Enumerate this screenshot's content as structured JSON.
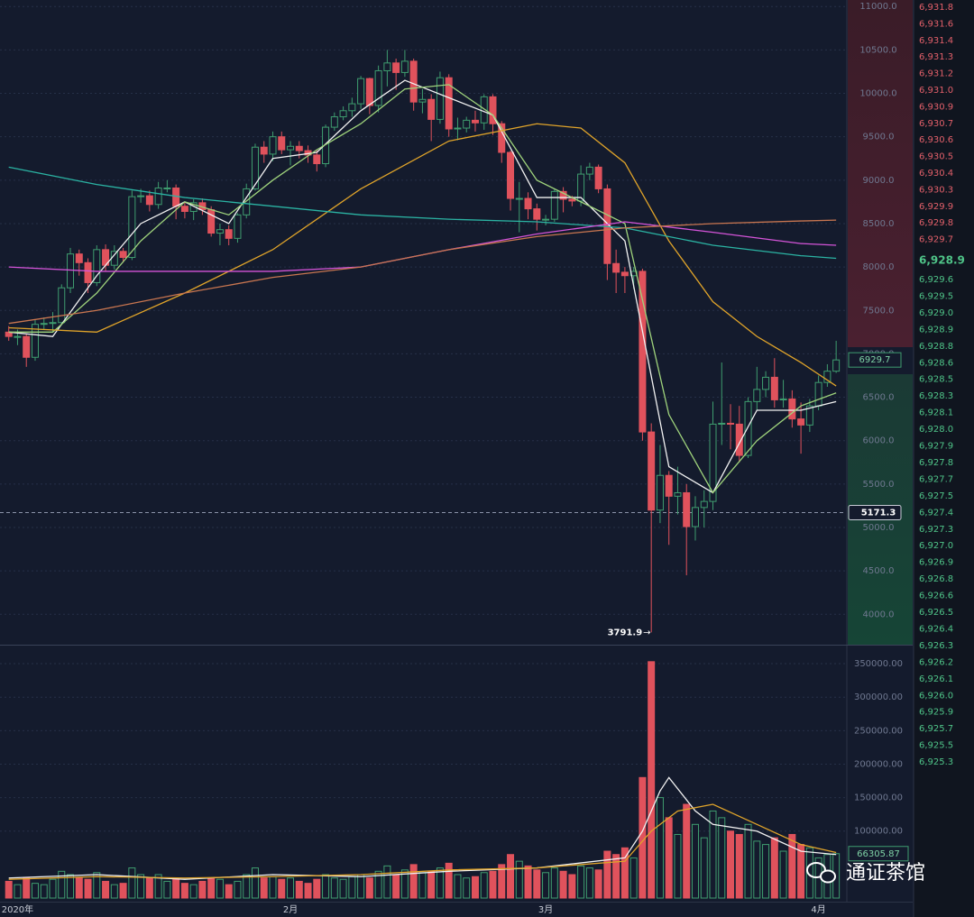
{
  "chart_data": {
    "type": "candlestick",
    "categories": [
      null,
      "2020年",
      null,
      null,
      null,
      null,
      null,
      null,
      null,
      null,
      null,
      null,
      null,
      null,
      null,
      null,
      null,
      null,
      null,
      null,
      null,
      null,
      null,
      null,
      null,
      null,
      null,
      null,
      null,
      null,
      null,
      null,
      "2月",
      null,
      null,
      null,
      null,
      null,
      null,
      null,
      null,
      null,
      null,
      null,
      null,
      null,
      null,
      null,
      null,
      null,
      null,
      null,
      null,
      null,
      null,
      null,
      null,
      null,
      null,
      null,
      null,
      "3月",
      null,
      null,
      null,
      null,
      null,
      null,
      null,
      null,
      null,
      null,
      null,
      null,
      null,
      null,
      null,
      null,
      null,
      null,
      null,
      null,
      null,
      null,
      null,
      null,
      null,
      null,
      null,
      null,
      null,
      null,
      "4月",
      null,
      null
    ],
    "candles": {
      "open": [
        7250,
        7200,
        7200,
        6960,
        7340,
        7350,
        7360,
        7760,
        8150,
        8050,
        7820,
        8200,
        8020,
        8180,
        8110,
        8810,
        8820,
        8720,
        8910,
        8910,
        8700,
        8640,
        8740,
        8660,
        8390,
        8430,
        8330,
        8600,
        8900,
        9380,
        9300,
        9500,
        9350,
        9390,
        9340,
        9290,
        9190,
        9610,
        9730,
        9800,
        9880,
        10170,
        9860,
        10260,
        10350,
        10240,
        10370,
        9900,
        9930,
        9700,
        10180,
        9590,
        9600,
        9690,
        9660,
        9960,
        9650,
        9320,
        8790,
        8790,
        8670,
        8550,
        8550,
        8870,
        8780,
        8760,
        9070,
        9150,
        8900,
        8040,
        7940,
        7900,
        7950,
        6100,
        5200,
        5600,
        5360,
        5400,
        5010,
        5230,
        5300,
        6190,
        6200,
        6190,
        5830,
        6450,
        6590,
        6730,
        6470,
        6480,
        6250,
        6180,
        6400,
        6670,
        6800
      ],
      "high": [
        7320,
        7280,
        7230,
        7400,
        7420,
        7480,
        7800,
        8220,
        8200,
        8100,
        8250,
        8260,
        8250,
        8220,
        8880,
        8900,
        8880,
        8980,
        9000,
        8950,
        8750,
        8780,
        8790,
        8700,
        8500,
        8480,
        8620,
        8960,
        9420,
        9450,
        9560,
        9560,
        9450,
        9450,
        9400,
        9350,
        9640,
        9780,
        9850,
        9950,
        10200,
        10180,
        10320,
        10500,
        10400,
        10500,
        10400,
        10050,
        9990,
        10250,
        10220,
        9720,
        9730,
        9800,
        9990,
        9990,
        9680,
        9340,
        8980,
        8860,
        8730,
        8600,
        8900,
        8920,
        8820,
        9170,
        9200,
        9180,
        8950,
        8200,
        8000,
        8000,
        7980,
        6200,
        5950,
        5650,
        5700,
        5500,
        5360,
        5430,
        6450,
        6900,
        6420,
        6400,
        6500,
        6850,
        6800,
        6950,
        6700,
        6580,
        6440,
        6480,
        6750,
        6880,
        7150
      ],
      "low": [
        7150,
        7100,
        6850,
        6920,
        7280,
        7250,
        7330,
        7700,
        7900,
        7700,
        7780,
        7950,
        7970,
        8050,
        8080,
        8740,
        8640,
        8670,
        8860,
        8550,
        8560,
        8540,
        8600,
        8350,
        8250,
        8250,
        8280,
        8560,
        8880,
        9200,
        9220,
        9300,
        9170,
        9250,
        9200,
        9100,
        9150,
        9570,
        9690,
        9730,
        9820,
        9760,
        9780,
        10080,
        10040,
        10190,
        9800,
        9770,
        9450,
        9650,
        9500,
        9460,
        9550,
        9560,
        9580,
        9520,
        9200,
        8650,
        8400,
        8550,
        8420,
        8480,
        8520,
        8630,
        8700,
        8700,
        9000,
        8850,
        7850,
        7700,
        7700,
        7750,
        6000,
        3791.9,
        5050,
        4800,
        5150,
        4450,
        4850,
        5000,
        5200,
        5950,
        5900,
        5750,
        5800,
        6350,
        6500,
        6380,
        6380,
        6150,
        5850,
        6100,
        6350,
        6620,
        6780
      ],
      "close": [
        7200,
        7200,
        6960,
        7340,
        7350,
        7360,
        7760,
        8150,
        8050,
        7820,
        8200,
        8020,
        8180,
        8110,
        8810,
        8820,
        8720,
        8910,
        8910,
        8700,
        8640,
        8740,
        8660,
        8390,
        8430,
        8330,
        8600,
        8900,
        9380,
        9300,
        9500,
        9350,
        9390,
        9340,
        9290,
        9190,
        9610,
        9730,
        9800,
        9880,
        10170,
        9860,
        10260,
        10350,
        10240,
        10370,
        9900,
        9930,
        9700,
        10180,
        9590,
        9600,
        9690,
        9660,
        9960,
        9650,
        9320,
        8790,
        8790,
        8670,
        8550,
        8550,
        8870,
        8780,
        8760,
        9070,
        9150,
        8900,
        8040,
        7940,
        7900,
        7950,
        6100,
        5200,
        5600,
        5360,
        5400,
        5010,
        5230,
        5300,
        6190,
        6200,
        6190,
        5830,
        6450,
        6590,
        6730,
        6470,
        6480,
        6250,
        6180,
        6400,
        6670,
        6800,
        6929.7
      ],
      "volume": [
        25000,
        20000,
        30000,
        22000,
        20000,
        28000,
        40000,
        35000,
        30000,
        28000,
        38000,
        25000,
        20000,
        22000,
        45000,
        35000,
        30000,
        35000,
        25000,
        30000,
        22000,
        20000,
        25000,
        30000,
        28000,
        20000,
        25000,
        35000,
        45000,
        30000,
        32000,
        28000,
        30000,
        25000,
        22000,
        28000,
        35000,
        30000,
        28000,
        32000,
        35000,
        30000,
        40000,
        48000,
        35000,
        42000,
        50000,
        38000,
        40000,
        45000,
        52000,
        35000,
        30000,
        32000,
        38000,
        40000,
        50000,
        65000,
        55000,
        48000,
        42000,
        38000,
        45000,
        40000,
        35000,
        48000,
        45000,
        42000,
        70000,
        65000,
        75000,
        60000,
        180000,
        353000,
        150000,
        120000,
        95000,
        140000,
        110000,
        90000,
        130000,
        120000,
        100000,
        95000,
        110000,
        85000,
        80000,
        90000,
        70000,
        95000,
        80000,
        75000,
        60000,
        65000,
        66305.87
      ]
    },
    "up_color": "#3f9d6f",
    "down_color": "#e0525c",
    "ma_lines": [
      {
        "color": "#f2f2f2",
        "x": [
          0,
          5,
          10,
          15,
          20,
          25,
          30,
          35,
          40,
          45,
          50,
          55,
          60,
          65,
          70,
          75,
          80,
          85,
          90,
          94
        ],
        "values": [
          7250,
          7200,
          7900,
          8500,
          8750,
          8500,
          9250,
          9320,
          9800,
          10150,
          9950,
          9750,
          8800,
          8800,
          8300,
          5700,
          5400,
          6350,
          6350,
          6450
        ]
      },
      {
        "color": "#9fd37c",
        "x": [
          0,
          5,
          10,
          15,
          20,
          25,
          30,
          35,
          40,
          45,
          50,
          55,
          60,
          65,
          70,
          75,
          80,
          85,
          90,
          94
        ],
        "values": [
          7250,
          7250,
          7700,
          8300,
          8750,
          8600,
          9000,
          9350,
          9650,
          10050,
          10100,
          9750,
          9000,
          8750,
          8500,
          6300,
          5400,
          6000,
          6400,
          6550
        ]
      },
      {
        "color": "#e0a42a",
        "x": [
          0,
          10,
          20,
          30,
          40,
          50,
          60,
          65,
          70,
          75,
          80,
          85,
          90,
          94
        ],
        "values": [
          7300,
          7250,
          7700,
          8200,
          8900,
          9450,
          9650,
          9600,
          9200,
          8300,
          7600,
          7200,
          6900,
          6630
        ]
      },
      {
        "color": "#2bb3a3",
        "x": [
          0,
          10,
          20,
          30,
          40,
          50,
          60,
          70,
          80,
          90,
          94
        ],
        "values": [
          9150,
          8950,
          8800,
          8700,
          8600,
          8550,
          8520,
          8450,
          8250,
          8130,
          8100
        ]
      },
      {
        "color": "#d454d8",
        "x": [
          0,
          10,
          20,
          30,
          40,
          50,
          60,
          70,
          80,
          90,
          94
        ],
        "values": [
          8000,
          7950,
          7950,
          7950,
          8000,
          8200,
          8380,
          8520,
          8400,
          8270,
          8250
        ]
      },
      {
        "color": "#c97650",
        "x": [
          0,
          10,
          20,
          30,
          40,
          50,
          60,
          70,
          80,
          90,
          94
        ],
        "values": [
          7350,
          7500,
          7700,
          7880,
          8000,
          8200,
          8350,
          8450,
          8500,
          8530,
          8540
        ]
      }
    ],
    "volume_ma_lines": [
      {
        "color": "#f2f2f2",
        "x": [
          0,
          10,
          20,
          30,
          40,
          50,
          60,
          70,
          72,
          74,
          75,
          78,
          80,
          85,
          90,
          94
        ],
        "values": [
          30000,
          35000,
          28000,
          35000,
          32000,
          40000,
          45000,
          60000,
          100000,
          160000,
          180000,
          130000,
          110000,
          100000,
          70000,
          65000
        ]
      },
      {
        "color": "#e0a42a",
        "x": [
          0,
          10,
          20,
          30,
          40,
          50,
          60,
          70,
          73,
          76,
          80,
          85,
          90,
          94
        ],
        "values": [
          28000,
          32000,
          30000,
          32000,
          35000,
          42000,
          45000,
          55000,
          100000,
          130000,
          140000,
          110000,
          80000,
          68000
        ]
      }
    ],
    "ylim": [
      3650,
      11075
    ],
    "yticks": [
      {
        "value": 4000,
        "label": "4000.0"
      },
      {
        "value": 4500,
        "label": "4500.0"
      },
      {
        "value": 5000,
        "label": "5000.0"
      },
      {
        "value": 5500,
        "label": "5500.0"
      },
      {
        "value": 6000,
        "label": "6000.0"
      },
      {
        "value": 6500,
        "label": "6500.0"
      },
      {
        "value": 7000,
        "label": "7000.0"
      },
      {
        "value": 7500,
        "label": "7500.0"
      },
      {
        "value": 8000,
        "label": "8000.0"
      },
      {
        "value": 8500,
        "label": "8500.0"
      },
      {
        "value": 9000,
        "label": "9000.0"
      },
      {
        "value": 9500,
        "label": "9500.0"
      },
      {
        "value": 10000,
        "label": "10000.0"
      },
      {
        "value": 10500,
        "label": "10500.0"
      },
      {
        "value": 11000,
        "label": "11000.0"
      }
    ],
    "y2lim": [
      0,
      377000
    ],
    "y2ticks": [
      {
        "value": 100000,
        "label": "100000.00"
      },
      {
        "value": 150000,
        "label": "150000.00"
      },
      {
        "value": 200000,
        "label": "200000.00"
      },
      {
        "value": 250000,
        "label": "250000.00"
      },
      {
        "value": 300000,
        "label": "300000.00"
      },
      {
        "value": 350000,
        "label": "350000.00"
      }
    ],
    "crosshair_price": 5171.3,
    "grid": true
  },
  "order_book": {
    "asks": [
      "6,931.8",
      "6,931.6",
      "6,931.4",
      "6,931.3",
      "6,931.2",
      "6,931.0",
      "6,930.9",
      "6,930.7",
      "6,930.6",
      "6,930.5",
      "6,930.4",
      "6,930.3",
      "6,929.9",
      "6,929.8",
      "6,929.7"
    ],
    "last": "6,928.9",
    "bids": [
      "6,929.6",
      "6,929.5",
      "6,929.0",
      "6,928.9",
      "6,928.8",
      "6,928.6",
      "6,928.5",
      "6,928.3",
      "6,928.1",
      "6,928.0",
      "6,927.9",
      "6,927.8",
      "6,927.7",
      "6,927.5",
      "6,927.4",
      "6,927.3",
      "6,927.0",
      "6,926.9",
      "6,926.8",
      "6,926.6",
      "6,926.5",
      "6,926.4",
      "6,926.3",
      "6,926.2",
      "6,926.1",
      "6,926.0",
      "6,925.9",
      "6,925.7",
      "6,925.5",
      "6,925.3"
    ]
  },
  "watermark": "通证茶馆"
}
